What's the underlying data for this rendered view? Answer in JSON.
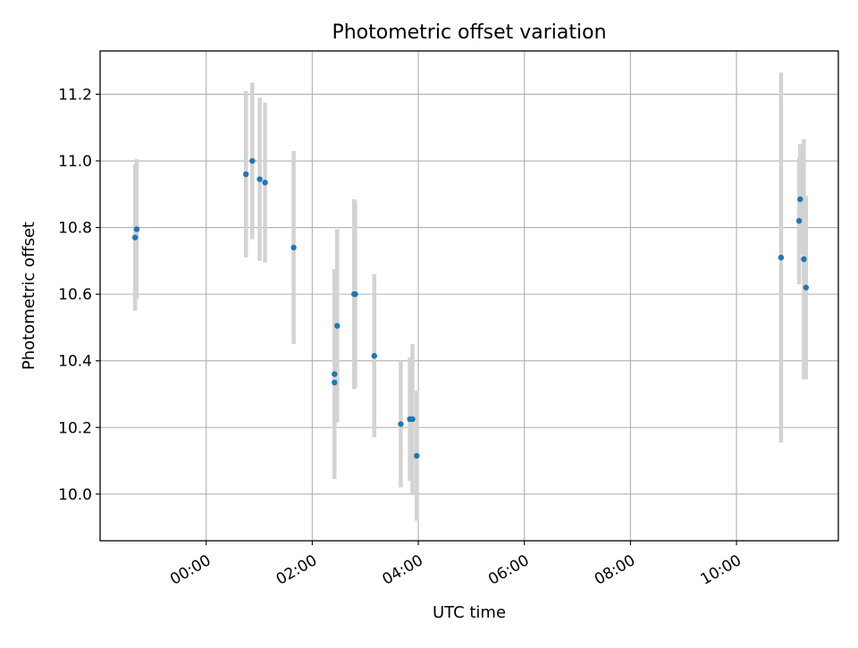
{
  "chart_data": {
    "type": "scatter",
    "title": "Photometric offset variation",
    "xlabel": "UTC time",
    "ylabel": "Photometric offset",
    "x_units": "hours UTC (time of day)",
    "xlim": [
      -2.0,
      11.92
    ],
    "ylim": [
      9.86,
      11.33
    ],
    "x_ticks": [
      {
        "value": 0,
        "label": "00:00"
      },
      {
        "value": 2,
        "label": "02:00"
      },
      {
        "value": 4,
        "label": "04:00"
      },
      {
        "value": 6,
        "label": "06:00"
      },
      {
        "value": 8,
        "label": "08:00"
      },
      {
        "value": 10,
        "label": "10:00"
      }
    ],
    "y_ticks": [
      {
        "value": 10.0,
        "label": "10.0"
      },
      {
        "value": 10.2,
        "label": "10.2"
      },
      {
        "value": 10.4,
        "label": "10.4"
      },
      {
        "value": 10.6,
        "label": "10.6"
      },
      {
        "value": 10.8,
        "label": "10.8"
      },
      {
        "value": 11.0,
        "label": "11.0"
      },
      {
        "value": 11.2,
        "label": "11.2"
      }
    ],
    "grid": true,
    "colors": {
      "point": "#1f77b4",
      "error_bar": "#d3d3d3",
      "grid": "#b0b0b0"
    },
    "series": [
      {
        "points": [
          {
            "x": -1.34,
            "y": 10.77,
            "err": 0.22
          },
          {
            "x": -1.31,
            "y": 10.795,
            "err": 0.21
          },
          {
            "x": 0.75,
            "y": 10.96,
            "err": 0.25
          },
          {
            "x": 0.87,
            "y": 11.0,
            "err": 0.235
          },
          {
            "x": 1.01,
            "y": 10.945,
            "err": 0.245
          },
          {
            "x": 1.11,
            "y": 10.935,
            "err": 0.24
          },
          {
            "x": 1.65,
            "y": 10.74,
            "err": 0.29
          },
          {
            "x": 2.42,
            "y": 10.36,
            "err": 0.315
          },
          {
            "x": 2.42,
            "y": 10.335,
            "err": 0.29
          },
          {
            "x": 2.47,
            "y": 10.505,
            "err": 0.29
          },
          {
            "x": 2.79,
            "y": 10.6,
            "err": 0.285
          },
          {
            "x": 2.81,
            "y": 10.6,
            "err": 0.28
          },
          {
            "x": 3.17,
            "y": 10.415,
            "err": 0.245
          },
          {
            "x": 3.67,
            "y": 10.21,
            "err": 0.19
          },
          {
            "x": 3.84,
            "y": 10.225,
            "err": 0.185
          },
          {
            "x": 3.89,
            "y": 10.225,
            "err": 0.225
          },
          {
            "x": 3.97,
            "y": 10.115,
            "err": 0.195
          },
          {
            "x": 10.84,
            "y": 10.71,
            "err": 0.555
          },
          {
            "x": 11.18,
            "y": 10.82,
            "err": 0.19
          },
          {
            "x": 11.2,
            "y": 10.885,
            "err": 0.165
          },
          {
            "x": 11.27,
            "y": 10.705,
            "err": 0.36
          },
          {
            "x": 11.31,
            "y": 10.62,
            "err": 0.275
          }
        ]
      }
    ]
  }
}
